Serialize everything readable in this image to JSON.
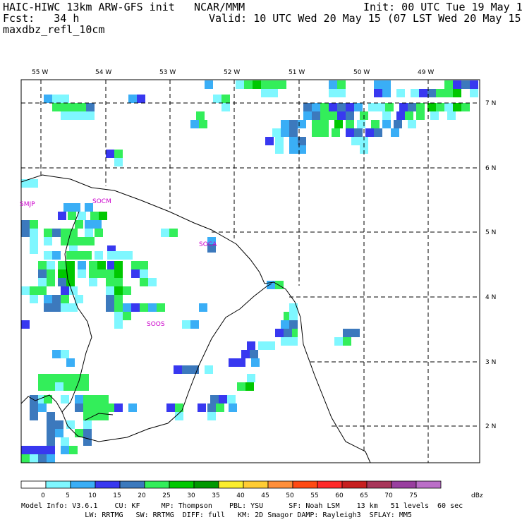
{
  "header": {
    "model": "HAIC-HIWC 13km ARW-GFS init",
    "org": "NCAR/MMM",
    "init": "Init: 00 UTC Tue 19 May 15",
    "fcst_label": "Fcst:",
    "fcst_value": "34 h",
    "valid": "Valid: 10 UTC Wed 20 May 15 (07 LST Wed 20 May 15)",
    "field": "maxdbz_refl_10cm"
  },
  "lon_labels": [
    "55 W",
    "54 W",
    "53 W",
    "52 W",
    "51 W",
    "50 W",
    "49 W"
  ],
  "lat_labels": [
    "7 N",
    "6 N",
    "5 N",
    "4 N",
    "3 N",
    "2 N"
  ],
  "stations": [
    "SMJP",
    "SOCM",
    "SOCA",
    "SOOS"
  ],
  "colorbar": {
    "unit": "dBz",
    "ticks": [
      "0",
      "5",
      "10",
      "15",
      "20",
      "25",
      "30",
      "35",
      "40",
      "45",
      "50",
      "55",
      "60",
      "65",
      "70",
      "75"
    ],
    "colors": [
      "#ffffff",
      "#7ff7ff",
      "#3aaef6",
      "#3838f0",
      "#3c79bd",
      "#33ee5a",
      "#00c800",
      "#009800",
      "#fbee2e",
      "#ffcc33",
      "#ff8f3a",
      "#ff4a13",
      "#ff2a2a",
      "#c71f1f",
      "#a8365a",
      "#993f9f",
      "#bb6ec8"
    ]
  },
  "footer": {
    "line1": "Model Info: V3.6.1    CU: KF     MP: Thompson    PBL: YSU      SF: Noah LSM    13 km   51 levels  60 sec",
    "line2": "               LW: RRTMG   SW: RRTMG  DIFF: full   KM: 2D Smagor DAMP: Rayleigh3  SFLAY: MM5"
  }
}
